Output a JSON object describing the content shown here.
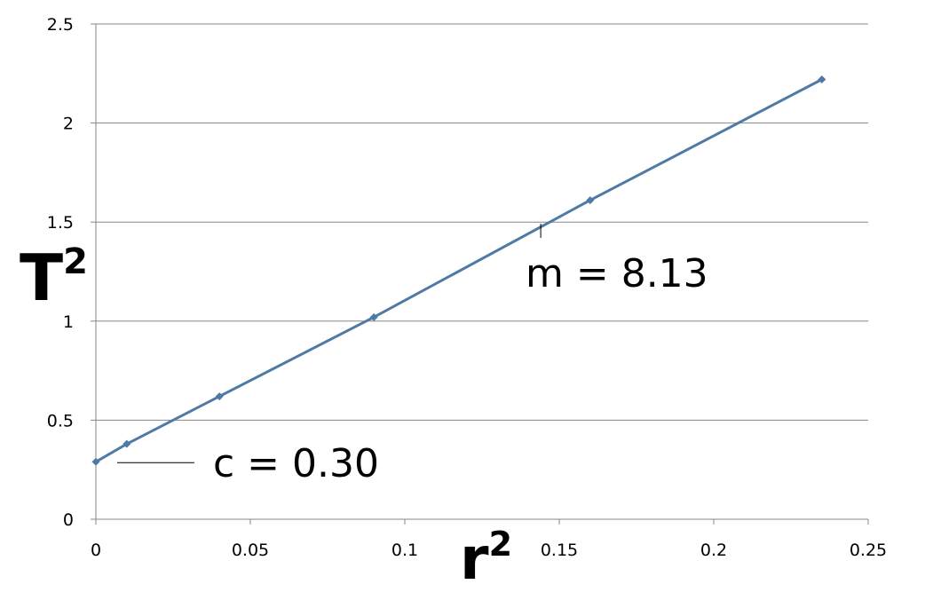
{
  "chart_data": {
    "type": "line",
    "title": "",
    "x_axis": {
      "range": [
        0,
        0.25
      ],
      "ticks": [
        0,
        0.05,
        0.1,
        0.15,
        0.2,
        0.25
      ],
      "tick_labels": [
        "0",
        "0.05",
        "0.1",
        "0.15",
        "0.2",
        "0.25"
      ]
    },
    "y_axis": {
      "range": [
        0,
        2.5
      ],
      "ticks": [
        0,
        0.5,
        1,
        1.5,
        2,
        2.5
      ],
      "tick_labels": [
        "0",
        "0.5",
        "1",
        "1.5",
        "2",
        "2.5"
      ]
    },
    "xlabel": {
      "base": "r",
      "superscript": "2"
    },
    "ylabel": {
      "base": "T",
      "superscript": "2"
    },
    "grid": {
      "horizontal": true,
      "vertical": false
    },
    "legend": "none",
    "series": [
      {
        "color": "#4f7aa6",
        "marker": "diamond",
        "x": [
          0,
          0.01,
          0.04,
          0.09,
          0.16,
          0.235
        ],
        "y": [
          0.29,
          0.38,
          0.62,
          1.02,
          1.61,
          2.22
        ]
      }
    ],
    "annotations": [
      {
        "text": "m = 8.13",
        "target": {
          "x": 0.144,
          "y": 1.42
        }
      },
      {
        "text": "c = 0.30",
        "target": {
          "x": 0.007,
          "y": 0.29
        }
      }
    ]
  }
}
